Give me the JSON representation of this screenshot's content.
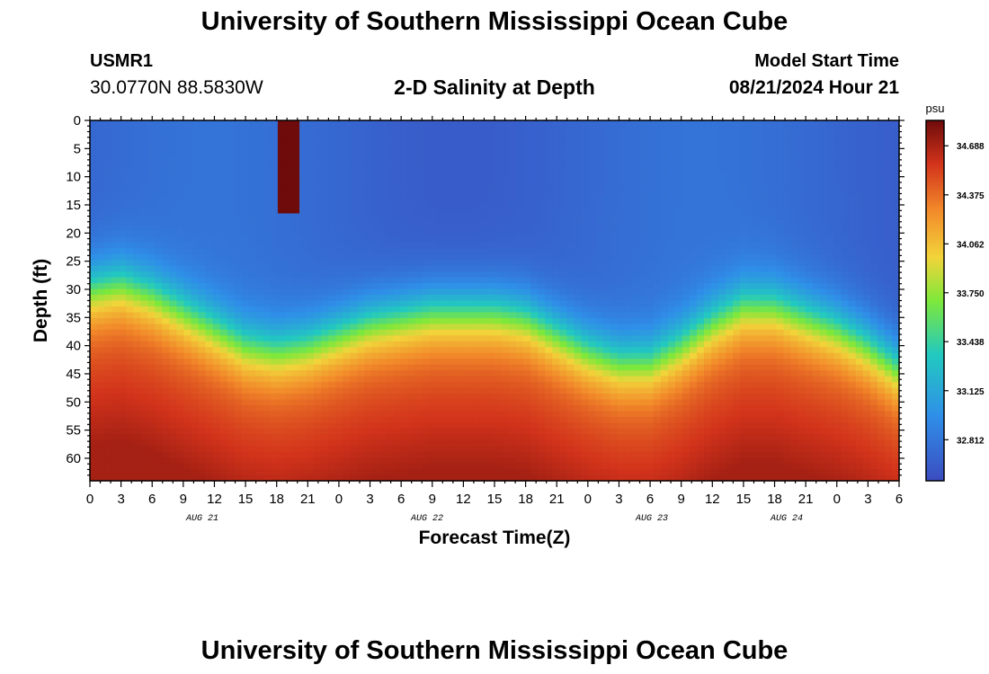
{
  "header": {
    "title": "University of Southern Mississippi Ocean Cube",
    "station_id": "USMR1",
    "coords": "30.0770N  88.5830W",
    "plot_title": "2-D Salinity at Depth",
    "start_label": "Model Start Time",
    "start_value": "08/21/2024 Hour 21"
  },
  "footer": {
    "title": "University of Southern Mississippi Ocean Cube"
  },
  "chart_data": {
    "type": "heatmap",
    "title": "2-D Salinity at Depth",
    "xlabel": "Forecast Time(Z)",
    "ylabel": "Depth (ft)",
    "x_tick_labels": [
      "0",
      "3",
      "6",
      "9",
      "12",
      "15",
      "18",
      "21",
      "0",
      "3",
      "6",
      "9",
      "12",
      "15",
      "18",
      "21",
      "0",
      "3",
      "6",
      "9",
      "12",
      "15",
      "18",
      "21",
      "0",
      "3",
      "6"
    ],
    "x_day_labels": [
      {
        "label": "AUG 21",
        "tick_index": 5
      },
      {
        "label": "AUG 22",
        "tick_index": 15
      },
      {
        "label": "AUG 23",
        "tick_index": 25
      },
      {
        "label": "AUG 24",
        "tick_index": 31
      }
    ],
    "y_ticks": [
      0,
      5,
      10,
      15,
      20,
      25,
      30,
      35,
      40,
      45,
      50,
      55,
      60
    ],
    "ylim": [
      0,
      64
    ],
    "xlim_hours": [
      0,
      78
    ],
    "colorbar": {
      "unit": "psu",
      "ticks": [
        "34.688",
        "34.375",
        "34.062",
        "33.750",
        "33.438",
        "33.125",
        "32.812"
      ],
      "min": 32.55,
      "max": 34.85
    },
    "halocline_depth_by_hour": [
      [
        0,
        30
      ],
      [
        3,
        29
      ],
      [
        6,
        31
      ],
      [
        9,
        34
      ],
      [
        12,
        37
      ],
      [
        15,
        40
      ],
      [
        18,
        41
      ],
      [
        21,
        40
      ],
      [
        24,
        38
      ],
      [
        27,
        36
      ],
      [
        30,
        35
      ],
      [
        33,
        34
      ],
      [
        36,
        34
      ],
      [
        39,
        34
      ],
      [
        42,
        35
      ],
      [
        45,
        38
      ],
      [
        48,
        41
      ],
      [
        51,
        43
      ],
      [
        54,
        43
      ],
      [
        57,
        40
      ],
      [
        60,
        36
      ],
      [
        63,
        33
      ],
      [
        66,
        33
      ],
      [
        69,
        35
      ],
      [
        72,
        37
      ],
      [
        75,
        40
      ],
      [
        78,
        44
      ]
    ],
    "upper_salinity": 32.72,
    "deep_salinity": 34.4,
    "high_salinity_core": {
      "hour_start": 18,
      "hour_end": 20,
      "depth_start": 0,
      "depth_end": 16,
      "value": 34.85
    }
  }
}
